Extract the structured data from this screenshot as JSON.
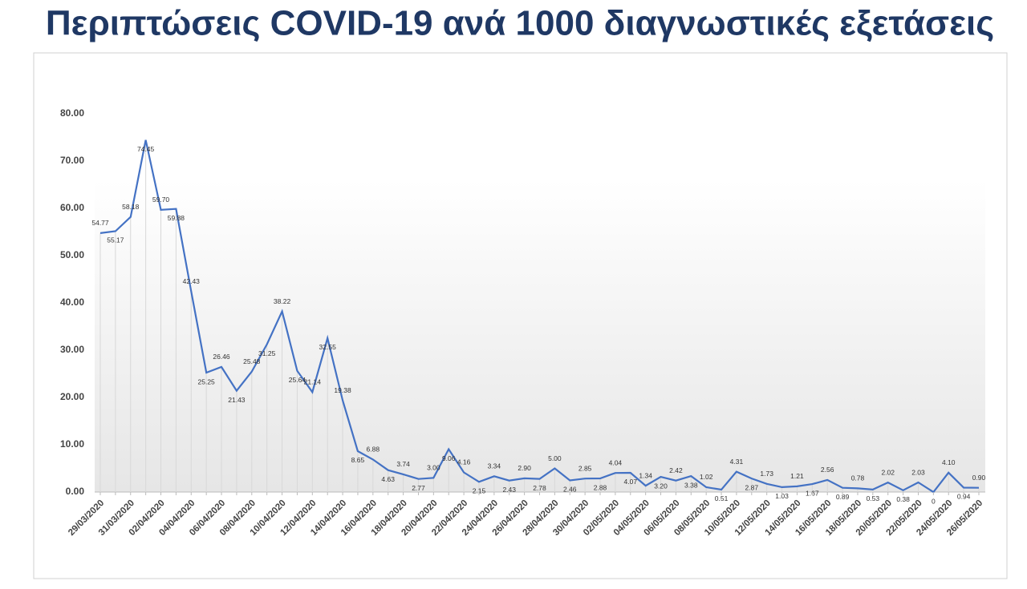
{
  "chart_data": {
    "type": "line",
    "title": "Περιπτώσεις COVID-19 ανά 1000 διαγνωστικές εξετάσεις",
    "categories": [
      "29/03/2020",
      null,
      "31/03/2020",
      null,
      "02/04/2020",
      null,
      "04/04/2020",
      null,
      "06/04/2020",
      null,
      "08/04/2020",
      null,
      "10/04/2020",
      null,
      "12/04/2020",
      null,
      "14/04/2020",
      null,
      "16/04/2020",
      null,
      "18/04/2020",
      null,
      "20/04/2020",
      null,
      "22/04/2020",
      null,
      "24/04/2020",
      null,
      "26/04/2020",
      null,
      "28/04/2020",
      null,
      "30/04/2020",
      null,
      "02/05/2020",
      null,
      "04/05/2020",
      null,
      "06/05/2020",
      null,
      "08/05/2020",
      null,
      "10/05/2020",
      null,
      "12/05/2020",
      null,
      "14/05/2020",
      null,
      "16/05/2020",
      null,
      "18/05/2020",
      null,
      "20/05/2020",
      null,
      "22/05/2020",
      null,
      "24/05/2020",
      null,
      "26/05/2020"
    ],
    "values": [
      54.77,
      55.17,
      58.18,
      74.45,
      59.7,
      59.88,
      42.43,
      25.25,
      26.46,
      21.43,
      25.48,
      31.25,
      38.22,
      25.64,
      21.14,
      32.55,
      19.38,
      8.65,
      6.88,
      4.63,
      3.74,
      2.77,
      3.0,
      9.06,
      4.16,
      2.15,
      3.34,
      2.43,
      2.9,
      2.78,
      5.0,
      2.46,
      2.85,
      2.88,
      4.04,
      4.07,
      1.34,
      3.2,
      2.42,
      3.38,
      1.02,
      0.51,
      4.31,
      2.87,
      1.73,
      1.03,
      1.21,
      1.67,
      2.56,
      0.89,
      0.78,
      0.53,
      2.02,
      0.38,
      2.03,
      0,
      4.1,
      0.94,
      0.9
    ],
    "value_labels": [
      "54.77",
      "55.17",
      "58.18",
      "74.45",
      "59.70",
      "59.88",
      "42.43",
      "25.25",
      "26.46",
      "21.43",
      "25.48",
      "31.25",
      "38.22",
      "25.64",
      "21.14",
      "32.55",
      "19.38",
      "8.65",
      "6.88",
      "4.63",
      "3.74",
      "2.77",
      "3.00",
      "9.06",
      "4.16",
      "2.15",
      "3.34",
      "2.43",
      "2.90",
      "2.78",
      "5.00",
      "2.46",
      "2.85",
      "2.88",
      "4.04",
      "4.07",
      "1.34",
      "3.20",
      "2.42",
      "3.38",
      "1.02",
      "0.51",
      "4.31",
      "2.87",
      "1.73",
      "1.03",
      "1.21",
      "1.67",
      "2.56",
      "0.89",
      "0.78",
      "0.53",
      "2.02",
      "0.38",
      "2.03",
      "0",
      "4.10",
      "0.94",
      "0.90"
    ],
    "color": "#4472c4",
    "ylim": [
      0,
      80
    ],
    "yticks": [
      {
        "value": 0,
        "label": "0.00"
      },
      {
        "value": 10,
        "label": "10.00"
      },
      {
        "value": 20,
        "label": "20.00"
      },
      {
        "value": 30,
        "label": "30.00"
      },
      {
        "value": 40,
        "label": "40.00"
      },
      {
        "value": 50,
        "label": "50.00"
      },
      {
        "value": 60,
        "label": "60.00"
      },
      {
        "value": 70,
        "label": "70.00"
      },
      {
        "value": 80,
        "label": "80.00"
      }
    ]
  }
}
